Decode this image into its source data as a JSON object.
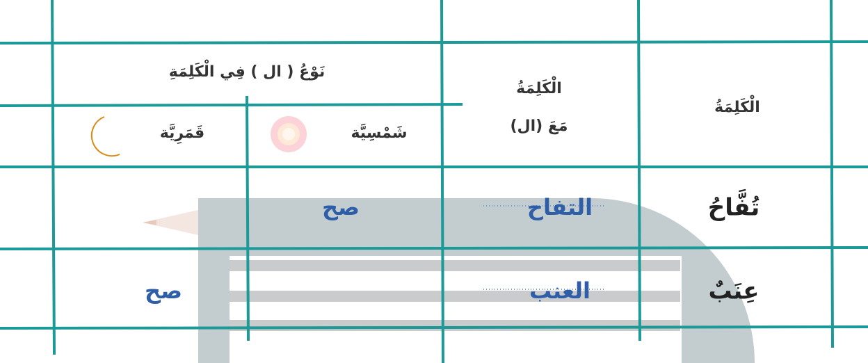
{
  "header": {
    "word": "الْكَلِمَةُ",
    "word_with_al": [
      "الْكَلِمَةُ",
      "مَعَ (ال)"
    ],
    "al_type": "نَوْعُ ( ال ) فِي الْكَلِمَةِ",
    "shamsiya": "شَمْسِيَّة",
    "qamariya": "قَمَرِيَّة"
  },
  "rows": [
    {
      "word": "تُفَّاحُ",
      "with_al": "التفاح",
      "shamsiya": "صح"
    },
    {
      "word": "عِنَبٌ",
      "with_al": "العنب",
      "qamariya": "صح"
    }
  ]
}
